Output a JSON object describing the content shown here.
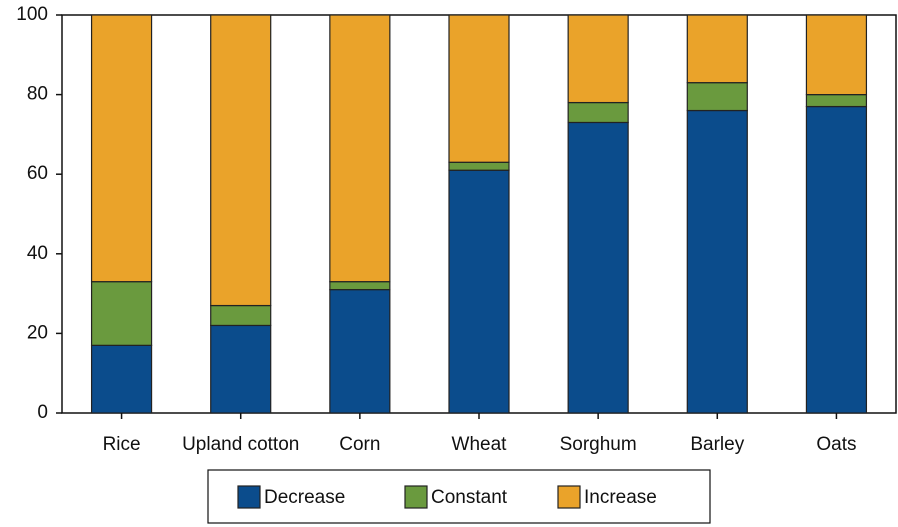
{
  "chart_data": {
    "type": "stacked_bar",
    "categories": [
      "Rice",
      "Upland cotton",
      "Corn",
      "Wheat",
      "Sorghum",
      "Barley",
      "Oats"
    ],
    "series": [
      {
        "name": "Decrease",
        "color": "#0b4c8c",
        "values": [
          17,
          22,
          31,
          61,
          73,
          76,
          77
        ]
      },
      {
        "name": "Constant",
        "color": "#6a9a3e",
        "values": [
          16,
          5,
          2,
          2,
          5,
          7,
          3
        ]
      },
      {
        "name": "Increase",
        "color": "#eaa32a",
        "values": [
          67,
          73,
          67,
          37,
          22,
          17,
          20
        ]
      }
    ],
    "ylim": [
      0,
      100
    ],
    "yticks": [
      0,
      20,
      40,
      60,
      80,
      100
    ]
  }
}
